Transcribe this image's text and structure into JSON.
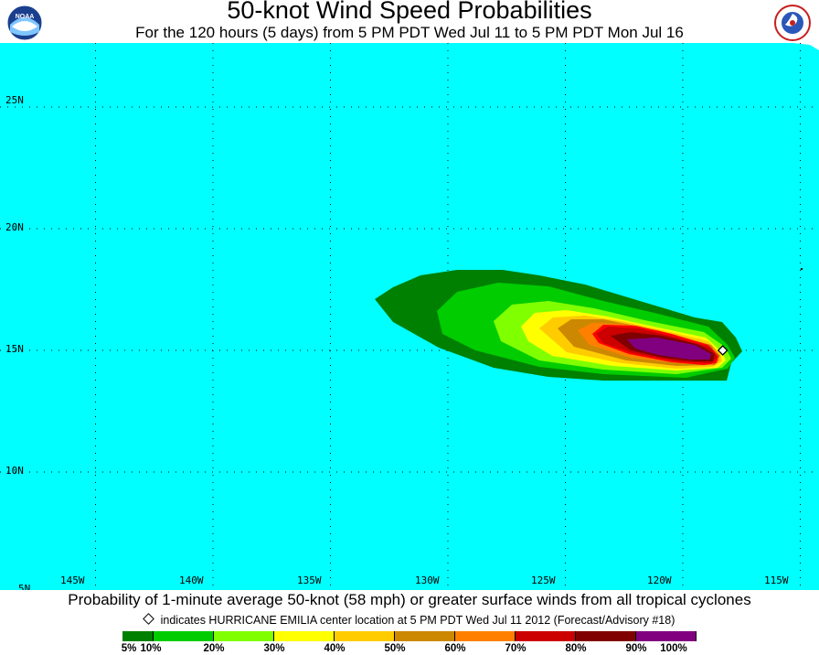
{
  "title": "50-knot Wind Speed Probabilities",
  "subtitle": "For the 120 hours (5 days) from 5 PM PDT Wed Jul 11 to 5 PM PDT Mon Jul 16",
  "logos": {
    "left": "noaa-logo",
    "right": "national-weather-service-logo"
  },
  "map": {
    "ocean_color": "#00ffff",
    "land_color": "#ffffff",
    "lat_labels": [
      "25N",
      "20N",
      "15N",
      "10N",
      "5N"
    ],
    "lon_labels": [
      "145W",
      "140W",
      "135W",
      "130W",
      "125W",
      "120W",
      "115W"
    ],
    "storm_marker": {
      "name": "HURRICANE EMILIA",
      "lon": -118.3,
      "lat": 15.0
    }
  },
  "caption": "Probability of 1-minute average 50-knot (58 mph) or greater surface winds from all tropical cyclones",
  "note": "indicates HURRICANE EMILIA center location at 5 PM PDT Wed Jul 11 2012 (Forecast/Advisory #18)",
  "legend": {
    "colors": [
      "#008000",
      "#00cc00",
      "#80ff00",
      "#ffff00",
      "#ffcc00",
      "#cc8800",
      "#ff8000",
      "#cc0000",
      "#800000",
      "#800080"
    ],
    "labels": [
      "5%",
      "10%",
      "20%",
      "30%",
      "40%",
      "50%",
      "60%",
      "70%",
      "80%",
      "90%",
      "100%"
    ]
  }
}
